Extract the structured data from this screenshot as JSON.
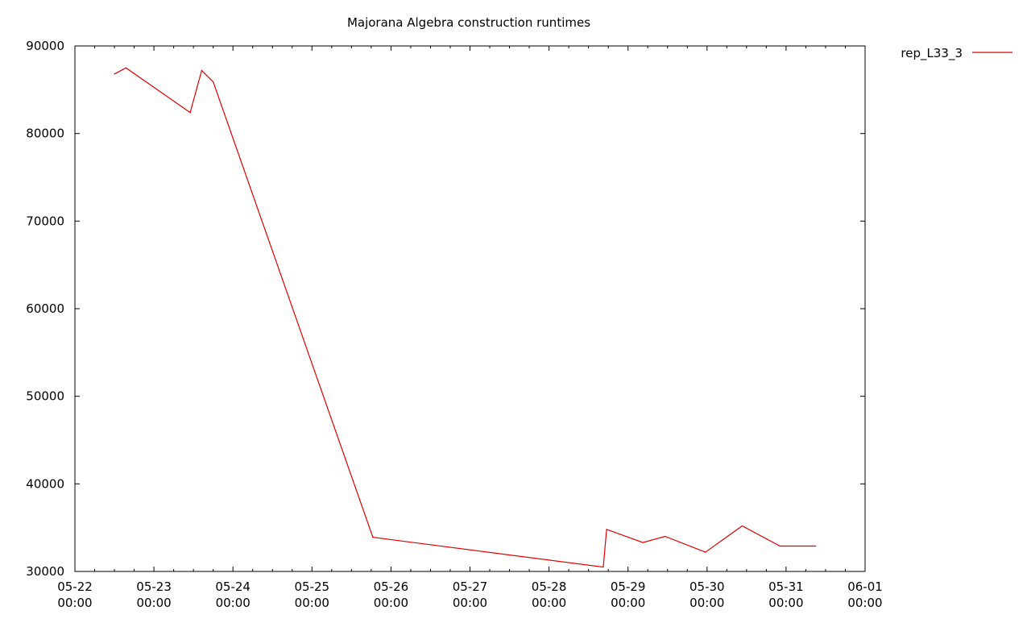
{
  "chart_data": {
    "type": "line",
    "title": "Majorana Algebra construction runtimes",
    "xlabel": "",
    "ylabel": "",
    "x_is_time": true,
    "xlim": [
      "2024-05-22T00:00",
      "2024-06-01T00:00"
    ],
    "ylim": [
      30000,
      90000
    ],
    "grid": false,
    "legend_position": "top-right-outside",
    "x_ticks": [
      {
        "value": "2024-05-22T00:00",
        "date_label": "05-22",
        "time_label": "00:00"
      },
      {
        "value": "2024-05-23T00:00",
        "date_label": "05-23",
        "time_label": "00:00"
      },
      {
        "value": "2024-05-24T00:00",
        "date_label": "05-24",
        "time_label": "00:00"
      },
      {
        "value": "2024-05-25T00:00",
        "date_label": "05-25",
        "time_label": "00:00"
      },
      {
        "value": "2024-05-26T00:00",
        "date_label": "05-26",
        "time_label": "00:00"
      },
      {
        "value": "2024-05-27T00:00",
        "date_label": "05-27",
        "time_label": "00:00"
      },
      {
        "value": "2024-05-28T00:00",
        "date_label": "05-28",
        "time_label": "00:00"
      },
      {
        "value": "2024-05-29T00:00",
        "date_label": "05-29",
        "time_label": "00:00"
      },
      {
        "value": "2024-05-30T00:00",
        "date_label": "05-30",
        "time_label": "00:00"
      },
      {
        "value": "2024-05-31T00:00",
        "date_label": "05-31",
        "time_label": "00:00"
      },
      {
        "value": "2024-06-01T00:00",
        "date_label": "06-01",
        "time_label": "00:00"
      }
    ],
    "x_minor_tick_hours": 6,
    "y_ticks": [
      {
        "value": 30000,
        "label": "30000"
      },
      {
        "value": 40000,
        "label": "40000"
      },
      {
        "value": 50000,
        "label": "50000"
      },
      {
        "value": 60000,
        "label": "60000"
      },
      {
        "value": 70000,
        "label": "70000"
      },
      {
        "value": 80000,
        "label": "80000"
      },
      {
        "value": 90000,
        "label": "90000"
      }
    ],
    "series": [
      {
        "name": "rep_L33_3",
        "color": "#e00000",
        "points": [
          {
            "x": "2024-05-22T12:00",
            "y": 86800
          },
          {
            "x": "2024-05-22T15:30",
            "y": 87500
          },
          {
            "x": "2024-05-23T11:00",
            "y": 82400
          },
          {
            "x": "2024-05-23T14:30",
            "y": 87200
          },
          {
            "x": "2024-05-23T18:00",
            "y": 85900
          },
          {
            "x": "2024-05-25T18:30",
            "y": 33900
          },
          {
            "x": "2024-05-28T16:30",
            "y": 30500
          },
          {
            "x": "2024-05-28T17:30",
            "y": 34800
          },
          {
            "x": "2024-05-29T04:30",
            "y": 33300
          },
          {
            "x": "2024-05-29T11:15",
            "y": 34000
          },
          {
            "x": "2024-05-29T23:30",
            "y": 32200
          },
          {
            "x": "2024-05-30T10:40",
            "y": 35200
          },
          {
            "x": "2024-05-30T22:10",
            "y": 32900
          },
          {
            "x": "2024-05-31T09:00",
            "y": 32900
          }
        ]
      }
    ]
  }
}
